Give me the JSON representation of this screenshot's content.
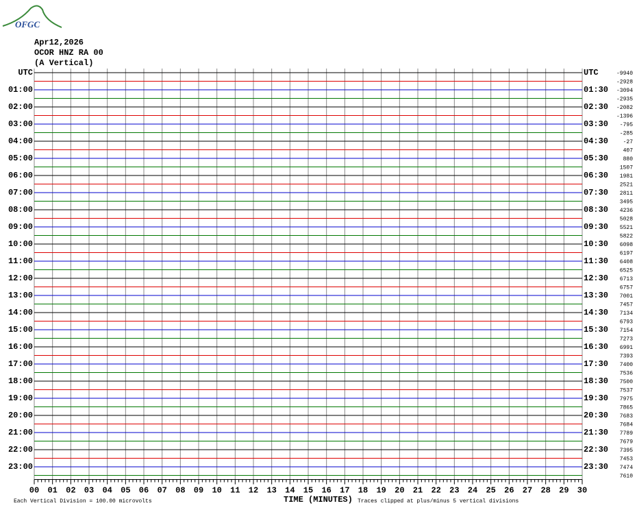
{
  "header": {
    "logo": "OFGC",
    "date": "Apr12,2026",
    "station": "OCOR HNZ RA 00",
    "component": "(A Vertical)"
  },
  "plot": {
    "left_labels": [
      "UTC",
      "01:00",
      "02:00",
      "03:00",
      "04:00",
      "05:00",
      "06:00",
      "07:00",
      "08:00",
      "09:00",
      "10:00",
      "11:00",
      "12:00",
      "13:00",
      "14:00",
      "15:00",
      "16:00",
      "17:00",
      "18:00",
      "19:00",
      "20:00",
      "21:00",
      "22:00",
      "23:00"
    ],
    "right_labels": [
      "UTC",
      "01:30",
      "02:30",
      "03:30",
      "04:30",
      "05:30",
      "06:30",
      "07:30",
      "08:30",
      "09:30",
      "10:30",
      "11:30",
      "12:30",
      "13:30",
      "14:30",
      "15:30",
      "16:30",
      "17:30",
      "18:30",
      "19:30",
      "20:30",
      "21:30",
      "22:30",
      "23:30"
    ],
    "trace_offsets": [
      "-9940",
      "-2928",
      "-3094",
      "-2935",
      "-2082",
      "-1396",
      "-795",
      "-285",
      "-27",
      "407",
      "880",
      "1507",
      "1981",
      "2521",
      "2811",
      "3495",
      "4236",
      "5028",
      "5521",
      "5822",
      "6098",
      "6197",
      "6408",
      "6525",
      "6713",
      "6757",
      "7001",
      "7457",
      "7134",
      "6793",
      "7154",
      "7273",
      "6991",
      "7393",
      "7400",
      "7536",
      "7500",
      "7537",
      "7975",
      "7865",
      "7683",
      "7684",
      "7789",
      "7679",
      "7395",
      "7453",
      "7474",
      "7610"
    ],
    "x_labels": [
      "00",
      "01",
      "02",
      "03",
      "04",
      "05",
      "06",
      "07",
      "08",
      "09",
      "10",
      "11",
      "12",
      "13",
      "14",
      "15",
      "16",
      "17",
      "18",
      "19",
      "20",
      "21",
      "22",
      "23",
      "24",
      "25",
      "26",
      "27",
      "28",
      "29",
      "30"
    ],
    "x_title": "TIME (MINUTES)"
  },
  "footer": {
    "scale_note": "Each Vertical Division =  100.00 microvolts",
    "clip_note": "Traces clipped at plus/minus 5 vertical divisions"
  }
}
